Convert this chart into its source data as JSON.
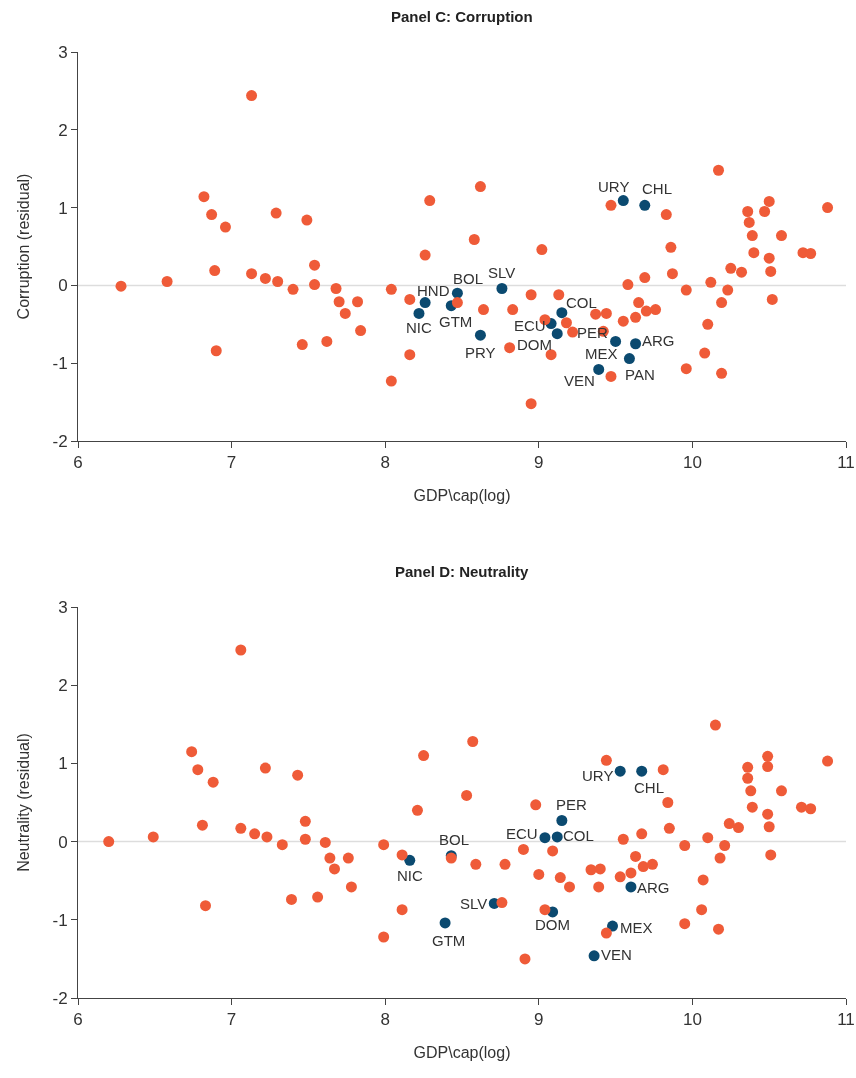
{
  "chart_data": [
    {
      "type": "scatter",
      "title": "Panel C: Corruption",
      "xlabel": "GDP\\cap(log)",
      "ylabel": "Corruption (residual)",
      "xlim": [
        6,
        11
      ],
      "ylim": [
        -2,
        3
      ],
      "xticks": [
        6,
        7,
        8,
        9,
        10,
        11
      ],
      "yticks": [
        -2,
        -1,
        0,
        1,
        2,
        3
      ],
      "marker": "circle",
      "ref_lines": [
        {
          "axis": "y",
          "value": 0,
          "color": "#dddddd"
        }
      ],
      "series": [
        {
          "color": "#ef5b38",
          "x": [
            6.28,
            6.58,
            6.82,
            6.87,
            6.96,
            7.13,
            7.29,
            7.49,
            8.29,
            8.26,
            6.89,
            6.9,
            7.13,
            7.22,
            7.3,
            7.4,
            7.46,
            7.62,
            7.54,
            7.54,
            7.68,
            7.7,
            7.82,
            7.74,
            7.84,
            8.04,
            8.16,
            8.16,
            8.04,
            8.47,
            8.62,
            8.58,
            9.02,
            8.95,
            9.13,
            8.64,
            8.83,
            9.04,
            9.18,
            9.22,
            8.81,
            9.08,
            8.95,
            9.47,
            9.83,
            10.17,
            9.86,
            9.87,
            9.69,
            9.58,
            9.65,
            9.37,
            9.44,
            9.42,
            9.55,
            9.63,
            9.7,
            9.76,
            9.96,
            10.12,
            10.23,
            10.19,
            10.1,
            10.08,
            9.96,
            10.19,
            9.47,
            10.25,
            10.32,
            10.5,
            10.36,
            10.47,
            10.37,
            10.39,
            10.58,
            10.4,
            10.5,
            10.51,
            10.52,
            10.72,
            10.77,
            10.88
          ],
          "values": [
            -0.01,
            0.05,
            1.14,
            0.91,
            0.75,
            2.44,
            0.93,
            0.84,
            1.09,
            0.39,
            0.19,
            -0.84,
            0.15,
            0.09,
            0.05,
            -0.05,
            -0.76,
            -0.72,
            0.26,
            0.01,
            -0.04,
            -0.21,
            -0.21,
            -0.36,
            -0.58,
            -0.05,
            -0.18,
            -0.89,
            -1.23,
            -0.22,
            1.27,
            0.59,
            0.46,
            -0.12,
            -0.12,
            -0.31,
            -0.31,
            -0.44,
            -0.48,
            -0.6,
            -0.8,
            -0.89,
            -1.52,
            1.03,
            0.91,
            1.48,
            0.49,
            0.15,
            0.1,
            0.01,
            -0.22,
            -0.37,
            -0.36,
            -0.59,
            -0.46,
            -0.41,
            -0.33,
            -0.31,
            -0.06,
            0.04,
            -0.06,
            -0.22,
            -0.5,
            -0.87,
            -1.07,
            -1.13,
            -1.17,
            0.22,
            0.17,
            1.08,
            0.95,
            0.95,
            0.81,
            0.64,
            0.64,
            0.42,
            0.35,
            0.18,
            -0.18,
            0.42,
            0.41,
            1.0
          ]
        },
        {
          "color": "#0b4a70",
          "x": [
            9.55,
            9.69,
            8.76,
            8.47,
            8.26,
            8.22,
            8.43,
            8.62,
            9.08,
            9.15,
            9.12,
            9.5,
            9.63,
            9.59,
            9.39
          ],
          "values": [
            1.09,
            1.03,
            -0.04,
            -0.1,
            -0.22,
            -0.36,
            -0.26,
            -0.64,
            -0.49,
            -0.35,
            -0.62,
            -0.72,
            -0.75,
            -0.94,
            -1.08
          ]
        }
      ],
      "annotations": [
        {
          "text": "URY",
          "x": 9.55,
          "y": 1.09
        },
        {
          "text": "CHL",
          "x": 9.69,
          "y": 1.03
        },
        {
          "text": "SLV",
          "x": 8.76,
          "y": -0.04
        },
        {
          "text": "BOL",
          "x": 8.47,
          "y": -0.1
        },
        {
          "text": "HND",
          "x": 8.26,
          "y": -0.22
        },
        {
          "text": "NIC",
          "x": 8.22,
          "y": -0.36
        },
        {
          "text": "GTM",
          "x": 8.43,
          "y": -0.26
        },
        {
          "text": "PRY",
          "x": 8.62,
          "y": -0.64
        },
        {
          "text": "ECU",
          "x": 9.08,
          "y": -0.49
        },
        {
          "text": "COL",
          "x": 9.15,
          "y": -0.35
        },
        {
          "text": "PER",
          "x": 9.18,
          "y": -0.48
        },
        {
          "text": "DOM",
          "x": 9.12,
          "y": -0.62
        },
        {
          "text": "MEX",
          "x": 9.5,
          "y": -0.72
        },
        {
          "text": "ARG",
          "x": 9.63,
          "y": -0.75
        },
        {
          "text": "PAN",
          "x": 9.59,
          "y": -0.94
        },
        {
          "text": "VEN",
          "x": 9.39,
          "y": -1.08
        }
      ]
    },
    {
      "type": "scatter",
      "title": "Panel D: Neutrality",
      "xlabel": "GDP\\cap(log)",
      "ylabel": "Neutrality (residual)",
      "xlim": [
        6,
        11
      ],
      "ylim": [
        -2,
        3
      ],
      "xticks": [
        6,
        7,
        8,
        9,
        10,
        11
      ],
      "yticks": [
        -2,
        -1,
        0,
        1,
        2,
        3
      ],
      "marker": "circle",
      "ref_lines": [
        {
          "axis": "y",
          "value": 0,
          "color": "#dddddd"
        }
      ],
      "series": [
        {
          "color": "#ef5b38",
          "x": [
            7.06,
            6.74,
            6.78,
            6.88,
            7.22,
            7.43,
            8.25,
            8.21,
            6.2,
            6.49,
            6.81,
            7.06,
            7.15,
            7.23,
            7.33,
            7.48,
            7.48,
            7.61,
            7.64,
            7.76,
            7.67,
            7.78,
            7.39,
            7.56,
            6.83,
            7.99,
            8.11,
            8.11,
            7.99,
            8.43,
            8.57,
            8.53,
            8.98,
            9.44,
            9.81,
            10.15,
            9.84,
            9.85,
            9.67,
            9.55,
            8.9,
            9.09,
            8.59,
            8.78,
            9.0,
            9.14,
            9.2,
            9.34,
            9.4,
            9.39,
            9.53,
            9.6,
            9.68,
            9.74,
            9.63,
            9.95,
            10.1,
            10.21,
            10.18,
            10.07,
            10.06,
            9.95,
            10.17,
            9.44,
            8.91,
            8.76,
            9.04,
            10.24,
            10.3,
            10.49,
            10.36,
            10.49,
            10.36,
            10.38,
            10.58,
            10.39,
            10.49,
            10.5,
            10.51,
            10.71,
            10.77,
            10.88
          ],
          "values": [
            2.45,
            1.15,
            0.92,
            0.76,
            0.94,
            0.85,
            1.1,
            0.4,
            0,
            0.06,
            0.21,
            0.17,
            0.1,
            0.06,
            -0.04,
            0.26,
            0.03,
            -0.01,
            -0.21,
            -0.21,
            -0.35,
            -0.58,
            -0.74,
            -0.71,
            -0.82,
            -0.04,
            -0.17,
            -0.87,
            -1.22,
            -0.21,
            1.28,
            0.59,
            0.47,
            1.04,
            0.92,
            1.49,
            0.5,
            0.17,
            0.1,
            0.03,
            -0.1,
            -0.12,
            -0.29,
            -0.29,
            -0.42,
            -0.46,
            -0.58,
            -0.36,
            -0.35,
            -0.58,
            -0.45,
            -0.4,
            -0.32,
            -0.29,
            -0.19,
            -0.05,
            0.05,
            -0.05,
            -0.21,
            -0.49,
            -0.87,
            -1.05,
            -1.12,
            -1.17,
            -1.5,
            -0.78,
            -0.87,
            0.23,
            0.18,
            1.09,
            0.95,
            0.96,
            0.81,
            0.65,
            0.65,
            0.44,
            0.35,
            0.19,
            -0.17,
            0.44,
            0.42,
            1.03
          ]
        },
        {
          "color": "#0b4a70",
          "x": [
            9.53,
            9.67,
            9.15,
            9.04,
            9.12,
            8.43,
            8.16,
            8.39,
            8.71,
            9.09,
            9.6,
            9.48,
            9.36
          ],
          "values": [
            0.9,
            0.9,
            0.27,
            0.05,
            0.06,
            -0.18,
            -0.24,
            -1.04,
            -0.79,
            -0.9,
            -0.58,
            -1.08,
            -1.46
          ]
        }
      ],
      "annotations": [
        {
          "text": "URY",
          "x": 9.53,
          "y": 0.9
        },
        {
          "text": "CHL",
          "x": 9.67,
          "y": 0.9
        },
        {
          "text": "PER",
          "x": 9.15,
          "y": 0.27
        },
        {
          "text": "ECU",
          "x": 9.04,
          "y": 0.05
        },
        {
          "text": "COL",
          "x": 9.12,
          "y": 0.06
        },
        {
          "text": "BOL",
          "x": 8.43,
          "y": -0.18
        },
        {
          "text": "NIC",
          "x": 8.16,
          "y": -0.24
        },
        {
          "text": "GTM",
          "x": 8.39,
          "y": -1.04
        },
        {
          "text": "SLV",
          "x": 8.71,
          "y": -0.79
        },
        {
          "text": "DOM",
          "x": 9.09,
          "y": -0.9
        },
        {
          "text": "ARG",
          "x": 9.6,
          "y": -0.58
        },
        {
          "text": "MEX",
          "x": 9.48,
          "y": -1.08
        },
        {
          "text": "VEN",
          "x": 9.36,
          "y": -1.46
        }
      ]
    }
  ]
}
